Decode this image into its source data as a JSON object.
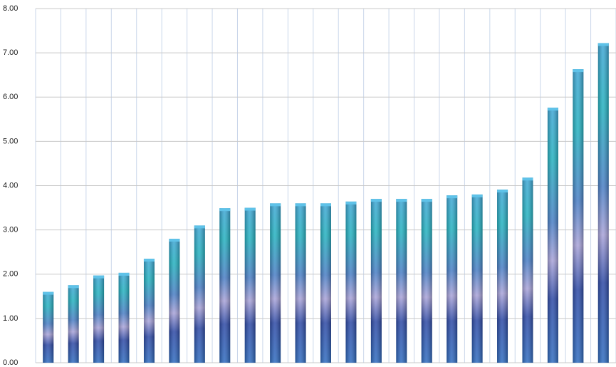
{
  "chart_data": {
    "type": "bar",
    "categories": [
      null,
      null,
      null,
      null,
      null,
      null,
      null,
      null,
      null,
      null,
      null,
      null,
      null,
      null,
      null,
      null,
      null,
      null,
      null,
      null,
      null,
      null,
      null
    ],
    "values": [
      1.6,
      1.75,
      1.97,
      2.03,
      2.35,
      2.8,
      3.1,
      3.49,
      3.5,
      3.6,
      3.6,
      3.6,
      3.64,
      3.7,
      3.7,
      3.7,
      3.78,
      3.8,
      3.91,
      4.18,
      5.76,
      6.63,
      7.22
    ],
    "ylim": [
      0,
      8
    ],
    "yticks": [
      {
        "value": 0,
        "label": "0.00"
      },
      {
        "value": 1,
        "label": "1.00"
      },
      {
        "value": 2,
        "label": "2.00"
      },
      {
        "value": 3,
        "label": "3.00"
      },
      {
        "value": 4,
        "label": "4.00"
      },
      {
        "value": 5,
        "label": "5.00"
      },
      {
        "value": 6,
        "label": "6.00"
      },
      {
        "value": 7,
        "label": "7.00"
      },
      {
        "value": 8,
        "label": "8.00"
      }
    ],
    "grid": true
  }
}
